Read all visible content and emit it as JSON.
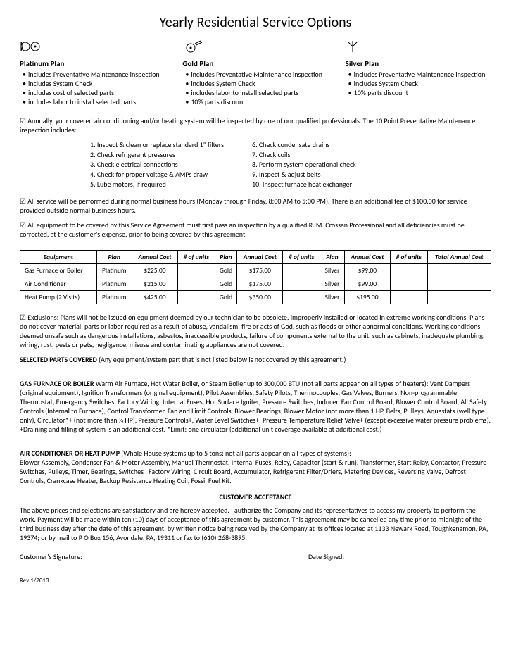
{
  "title": "Yearly Residential Service Options",
  "plans": [
    {
      "name": "Platinum Plan",
      "features": [
        "includes Preventative Maintenance inspection",
        "includes System Check",
        "includes cost of selected parts",
        "includes labor to install selected parts"
      ]
    },
    {
      "name": "Gold Plan",
      "features": [
        "includes Preventative Maintenance inspection",
        "includes System Check",
        "includes labor to install selected parts",
        "10% parts discount"
      ]
    },
    {
      "name": "Silver Plan",
      "features": [
        "includes Preventative Maintenance inspection",
        "includes System Check",
        "10% parts discount"
      ]
    }
  ],
  "intro_para": "Annually, your covered air conditioning and/or heating system will be inspected by one of our qualified professionals. The 10 Point Preventative Maintenance inspection includes:",
  "inspection_left": [
    "1. Inspect & clean or replace standard 1\" filters",
    "2. Check refrigerant pressures",
    "3. Check electrical connections",
    "4. Check for proper voltage & AMPs draw",
    "5. Lube motors, if required"
  ],
  "inspection_right": [
    "6. Check condensate drains",
    "7. Check coils",
    "8. Perform system operational check",
    "9. Inspect & adjust belts",
    "10. Inspect furnace heat exchanger"
  ],
  "hours_para": "All service will be performed during normal business hours (Monday through Friday, 8:00 AM to 5:00 PM). There is an additional fee of $100.00 for service provided outside normal business hours.",
  "equip_para": "All equipment to be covered by this Service Agreement must first pass an inspection by a qualified R. M. Crossan Professional and all deficiencies must be corrected, at the customer's expense, prior to being covered by this agreement.",
  "table": {
    "headers": [
      "Equipment",
      "Plan",
      "Annual Cost",
      "# of units",
      "Plan",
      "Annual Cost",
      "# of units",
      "Plan",
      "Annual Cost",
      "# of units",
      "Total Annual Cost"
    ],
    "rows": [
      [
        "Gas Furnace or Boiler",
        "Platinum",
        "$225.00",
        "",
        "Gold",
        "$175.00",
        "",
        "Silver",
        "$99.00",
        "",
        ""
      ],
      [
        "Air Conditioner",
        "Platinum",
        "$215.00",
        "",
        "Gold",
        "$175.00",
        "",
        "Silver",
        "$99.00",
        "",
        ""
      ],
      [
        "Heat Pump (2 Visits)",
        "Platinum",
        "$425.00",
        "",
        "Gold",
        "$350.00",
        "",
        "Silver",
        "$195.00",
        "",
        ""
      ]
    ]
  },
  "exclusions": "Exclusions: Plans will not be issued on equipment deemed by our technician to be obsolete, improperly installed or located in extreme working conditions. Plans do not cover material, parts or labor required as a result of abuse, vandalism, fire or acts of God, such as floods or other abnormal conditions. Working conditions deemed unsafe such as dangerous installations, asbestos, inaccessible products, failure of components external to the unit, such as cabinets, inadequate plumbing, wiring, rust, pests or pets, negligence, misuse and contaminating appliances are not covered.",
  "selected_parts_head": "SELECTED PARTS COVERED",
  "selected_parts_tail": " (Any equipment/system part that is not listed below is not covered by this agreement.)",
  "gas_head": "GAS FURNACE OR BOILER",
  "gas_body": " Warm Air Furnace, Hot Water Boiler, or Steam Boiler up to 300,000 BTU (not all parts appear on all types of heaters): Vent Dampers (original equipment), Ignition Transformers (original equipment), Pilot Assemblies, Safety Pilots, Thermocouples, Gas Valves, Burners, Non-programmable Thermostat, Emergency Switches, Factory Wiring, Internal Fuses, Hot Surface Igniter, Pressure Switches, Inducer, Fan Control Board, Blower Control Board, All Safety Controls (Internal to Furnace), Control Transformer, Fan and Limit Controls, Blower Bearings, Blower Motor (not more than 1 HP, Belts, Pulleys, Aquastats (well type only), Circulator*+ (not more than ¼ HP), Pressure Controls+, Water Level Switches+, Pressure Temperature Relief Valve+ (except excessive water pressure problems).\n+Draining and filling of system is an additional cost.   *Limit: one circulator (additional unit coverage available at additional cost.)",
  "ac_head": "AIR CONDITIONER OR HEAT PUMP",
  "ac_body": " (Whole House systems up to 5 tons: not all parts appear on all types of systems):\nBlower Assembly, Condenser Fan & Motor Assembly, Manual Thermostat, Internal Fuses, Relay, Capacitor (start & run), Transformer, Start Relay, Contactor, Pressure Switches, Pulleys, Timer, Bearings, Switches , Factory Wiring, Circuit Board, Accumulator, Refrigerant Filter/Driers, Metering Devices, Reversing Valve, Defrost Controls, Crankcase Heater, Backup Resistance Heating Coil, Fossil Fuel Kit.",
  "acceptance_title": "CUSTOMER ACCEPTANCE",
  "acceptance_body": "The above prices and selections are satisfactory and are hereby accepted.  I authorize the Company and its representatives to access my property to perform the work. Payment will be made within ten (10) days of acceptance of this agreement by customer. This agreement may be cancelled any time prior to midnight of the third business day after the date of this agreement, by written notice being received by the Company at its offices located at 1133 Newark Road, Toughkenamon, PA, 19374; or by mail to P O Box 156, Avondale, PA, 19311 or fax to (610) 268-3895.",
  "sig_label": "Customer's Signature:",
  "date_label": "Date Signed:",
  "rev": "Rev 1/2013"
}
